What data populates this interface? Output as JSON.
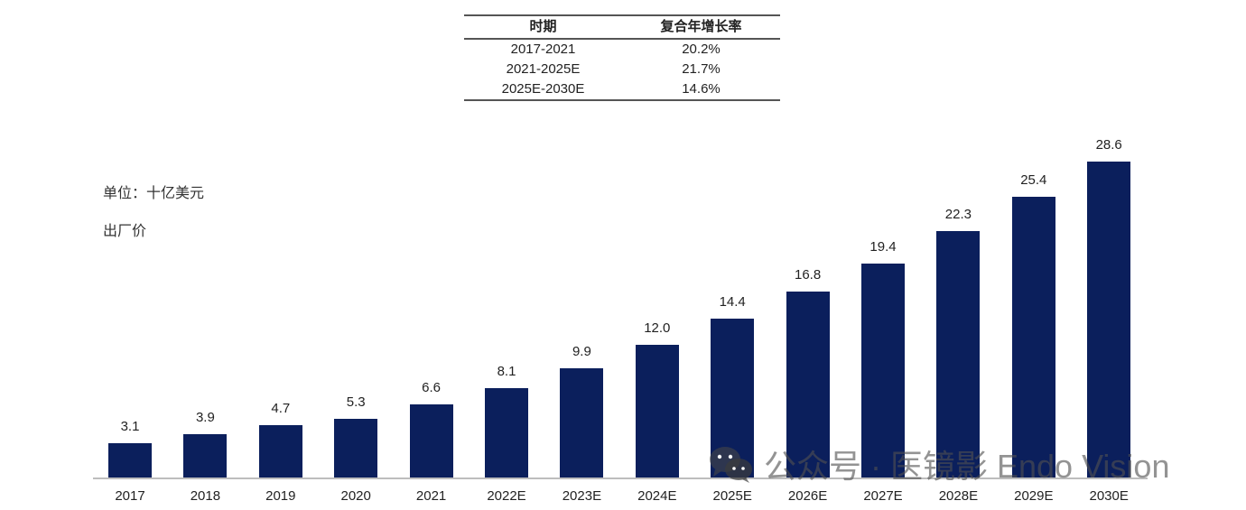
{
  "chart_data": {
    "type": "bar",
    "title": "",
    "xlabel": "",
    "ylabel": "单位：十亿美元",
    "unit_note": "单位：十亿美元",
    "price_note": "出厂价",
    "categories": [
      "2017",
      "2018",
      "2019",
      "2020",
      "2021",
      "2022E",
      "2023E",
      "2024E",
      "2025E",
      "2026E",
      "2027E",
      "2028E",
      "2029E",
      "2030E"
    ],
    "values": [
      3.1,
      3.9,
      4.7,
      5.3,
      6.6,
      8.1,
      9.9,
      12.0,
      14.4,
      16.8,
      19.4,
      22.3,
      25.4,
      28.6
    ],
    "value_labels": [
      "3.1",
      "3.9",
      "4.7",
      "5.3",
      "6.6",
      "8.1",
      "9.9",
      "12.0",
      "14.4",
      "16.8",
      "19.4",
      "22.3",
      "25.4",
      "28.6"
    ],
    "ylim": [
      0,
      30
    ],
    "grid": false,
    "bar_color": "#0b1f5c",
    "cagr_table": {
      "headers": [
        "时期",
        "复合年增长率"
      ],
      "rows": [
        [
          "2017-2021",
          "20.2%"
        ],
        [
          "2021-2025E",
          "21.7%"
        ],
        [
          "2025E-2030E",
          "14.6%"
        ]
      ]
    }
  },
  "watermark": {
    "icon": "wechat-icon",
    "text": "公众号 · 医镜影 Endo Vision"
  }
}
